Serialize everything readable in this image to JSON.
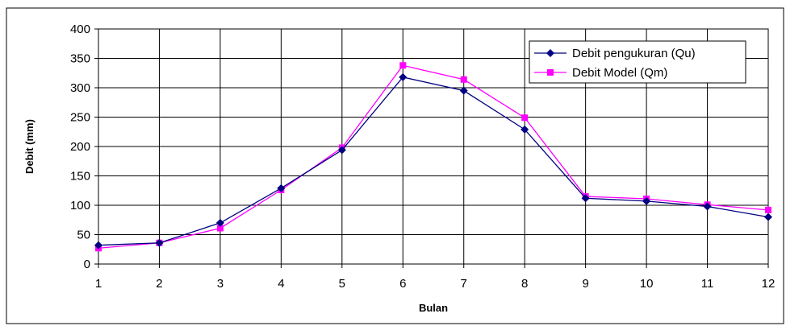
{
  "chart_data": {
    "type": "line",
    "title": "",
    "xlabel": "Bulan",
    "ylabel": "Debit (mm)",
    "x": [
      1,
      2,
      3,
      4,
      5,
      6,
      7,
      8,
      9,
      10,
      11,
      12
    ],
    "xlim": [
      1,
      12
    ],
    "ylim": [
      0,
      400
    ],
    "yticks": [
      0,
      50,
      100,
      150,
      200,
      250,
      300,
      350,
      400
    ],
    "grid": true,
    "legend_position": "top-right",
    "series": [
      {
        "name": "Debit pengukuran (Qu)",
        "color": "#000080",
        "marker": "diamond",
        "values": [
          32,
          36,
          70,
          129,
          194,
          318,
          295,
          229,
          112,
          107,
          98,
          80
        ]
      },
      {
        "name": "Debit Model (Qm)",
        "color": "#ff00ff",
        "marker": "square",
        "values": [
          27,
          36,
          61,
          126,
          198,
          338,
          314,
          249,
          115,
          111,
          101,
          92
        ]
      }
    ]
  }
}
